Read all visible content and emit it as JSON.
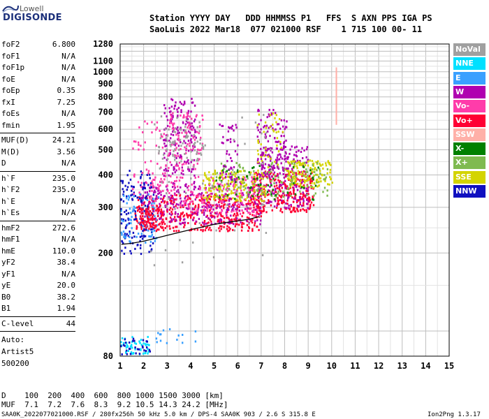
{
  "brand": {
    "line1": "Lowell",
    "line2": "DIGISONDE"
  },
  "header": {
    "row1": "Station YYYY DAY   DDD HHMMSS P1   FFS  S AXN PPS IGA PS",
    "row2": "SaoLuis 2022 Mar18  077 021000 RSF    1 715 100 00- 11"
  },
  "params_a": [
    {
      "name": "foF2",
      "value": "6.800"
    },
    {
      "name": "foF1",
      "value": "N/A"
    },
    {
      "name": "foF1p",
      "value": "N/A"
    },
    {
      "name": "foE",
      "value": "N/A"
    },
    {
      "name": "foEp",
      "value": "0.35"
    },
    {
      "name": "fxI",
      "value": "7.25"
    },
    {
      "name": "foEs",
      "value": "N/A"
    },
    {
      "name": "fmin",
      "value": "1.95"
    }
  ],
  "params_b": [
    {
      "name": "MUF(D)",
      "value": "24.21"
    },
    {
      "name": "M(D)",
      "value": "3.56"
    },
    {
      "name": "D",
      "value": "N/A"
    }
  ],
  "params_c": [
    {
      "name": "h`F",
      "value": "235.0"
    },
    {
      "name": "h`F2",
      "value": "235.0"
    },
    {
      "name": "h`E",
      "value": "N/A"
    },
    {
      "name": "h`Es",
      "value": "N/A"
    }
  ],
  "params_d": [
    {
      "name": "hmF2",
      "value": "272.6"
    },
    {
      "name": "hmF1",
      "value": "N/A"
    },
    {
      "name": "hmE",
      "value": "110.0"
    },
    {
      "name": "yF2",
      "value": "38.4"
    },
    {
      "name": "yF1",
      "value": "N/A"
    },
    {
      "name": "yE",
      "value": "20.0"
    },
    {
      "name": "B0",
      "value": "38.2"
    },
    {
      "name": "B1",
      "value": "1.94"
    }
  ],
  "c_level": {
    "name": "C-level",
    "value": "44"
  },
  "scaling": [
    "Auto:",
    "Artist5",
    "500200"
  ],
  "legend": [
    {
      "label": "NoVal",
      "color": "#a0a0a0"
    },
    {
      "label": "NNE",
      "color": "#00e0ff"
    },
    {
      "label": "E",
      "color": "#3aa0ff"
    },
    {
      "label": "W",
      "color": "#b000b0"
    },
    {
      "label": "Vo-",
      "color": "#ff3caa"
    },
    {
      "label": "Vo+",
      "color": "#ff0033"
    },
    {
      "label": "SSW",
      "color": "#ffb0a8"
    },
    {
      "label": "X-",
      "color": "#008000"
    },
    {
      "label": "X+",
      "color": "#7fba50"
    },
    {
      "label": "SSE",
      "color": "#d4d400"
    },
    {
      "label": "NNW",
      "color": "#1010c0"
    }
  ],
  "footer": {
    "d_row": "D    100  200  400  600  800 1000 1500 3000 [km]",
    "muf_row": "MUF  7.1  7.2  7.6  8.3  9.2 10.5 14.3 24.2 [MHz]",
    "file_info": "SAA0K_2022077021000.RSF / 280fx256h 50 kHz 5.0 km / DPS-4 SAA0K 903 / 2.6 S 315.8 E",
    "version": "Ion2Png 1.3.17"
  },
  "chart_data": {
    "type": "scatter",
    "title": "",
    "xlabel": "",
    "ylabel": "",
    "xlim": [
      1,
      15
    ],
    "ylim": [
      80,
      1280
    ],
    "y_scale": "log",
    "x_ticks": [
      1,
      2,
      3,
      4,
      5,
      6,
      7,
      8,
      9,
      10,
      11,
      12,
      13,
      14,
      15
    ],
    "y_ticks": [
      80,
      200,
      300,
      400,
      500,
      600,
      700,
      800,
      900,
      1000,
      1100,
      1280
    ],
    "grid": true,
    "legend_position": "right",
    "trace": {
      "name": "",
      "x": [
        1.05,
        1.5,
        2.0,
        2.5,
        3.0,
        3.5,
        4.0,
        4.5,
        5.0,
        5.5,
        6.0,
        6.5,
        6.9
      ],
      "y": [
        216,
        218,
        222,
        228,
        234,
        240,
        246,
        252,
        258,
        262,
        266,
        270,
        276
      ]
    },
    "clusters": [
      {
        "color": "#ff0033",
        "x": [
          1.6,
          7.0
        ],
        "y": [
          245,
          340
        ],
        "n": 420
      },
      {
        "color": "#ff0033",
        "x": [
          6.6,
          9.2
        ],
        "y": [
          290,
          420
        ],
        "n": 300
      },
      {
        "color": "#b000b0",
        "x": [
          1.8,
          7.0
        ],
        "y": [
          260,
          380
        ],
        "n": 300
      },
      {
        "color": "#b000b0",
        "x": [
          6.8,
          9.0
        ],
        "y": [
          300,
          520
        ],
        "n": 200
      },
      {
        "color": "#ff3caa",
        "x": [
          2.2,
          6.8
        ],
        "y": [
          280,
          400
        ],
        "n": 180
      },
      {
        "color": "#d4d400",
        "x": [
          4.5,
          7.2
        ],
        "y": [
          320,
          420
        ],
        "n": 160
      },
      {
        "color": "#d4d400",
        "x": [
          8.0,
          10.0
        ],
        "y": [
          360,
          460
        ],
        "n": 140
      },
      {
        "color": "#7fba50",
        "x": [
          4.8,
          9.8
        ],
        "y": [
          330,
          450
        ],
        "n": 120
      },
      {
        "color": "#008000",
        "x": [
          5.0,
          9.5
        ],
        "y": [
          320,
          440
        ],
        "n": 60
      },
      {
        "color": "#1010c0",
        "x": [
          1.0,
          2.4
        ],
        "y": [
          200,
          420
        ],
        "n": 140
      },
      {
        "color": "#3aa0ff",
        "x": [
          1.0,
          2.6
        ],
        "y": [
          220,
          340
        ],
        "n": 80
      },
      {
        "color": "#00e0ff",
        "x": [
          1.0,
          2.2
        ],
        "y": [
          82,
          96
        ],
        "n": 50
      },
      {
        "color": "#1010c0",
        "x": [
          1.0,
          2.3
        ],
        "y": [
          82,
          95
        ],
        "n": 30
      },
      {
        "color": "#b000b0",
        "x": [
          2.8,
          4.2
        ],
        "y": [
          400,
          800
        ],
        "n": 160
      },
      {
        "color": "#ff3caa",
        "x": [
          3.0,
          4.5
        ],
        "y": [
          420,
          700
        ],
        "n": 100
      },
      {
        "color": "#b000b0",
        "x": [
          6.8,
          8.1
        ],
        "y": [
          400,
          720
        ],
        "n": 100
      },
      {
        "color": "#d4d400",
        "x": [
          6.8,
          7.9
        ],
        "y": [
          420,
          700
        ],
        "n": 40
      },
      {
        "color": "#b000b0",
        "x": [
          5.2,
          6.0
        ],
        "y": [
          380,
          650
        ],
        "n": 50
      },
      {
        "color": "#ff3caa",
        "x": [
          1.5,
          3.0
        ],
        "y": [
          340,
          650
        ],
        "n": 60
      },
      {
        "color": "#ff0033",
        "x": [
          1.8,
          2.8
        ],
        "y": [
          250,
          300
        ],
        "n": 80
      },
      {
        "color": "#3aa0ff",
        "x": [
          2.5,
          4.2
        ],
        "y": [
          90,
          105
        ],
        "n": 15
      },
      {
        "color": "#a0a0a0",
        "x": [
          2.6,
          4.6
        ],
        "y": [
          450,
          620
        ],
        "n": 70
      },
      {
        "color": "#a0a0a0",
        "x": [
          1.8,
          7.5
        ],
        "y": [
          180,
          700
        ],
        "n": 60
      }
    ],
    "column": {
      "x": 10.2,
      "color": "#ffb0a8",
      "y": [
        640,
        1040
      ],
      "n": 55
    }
  }
}
